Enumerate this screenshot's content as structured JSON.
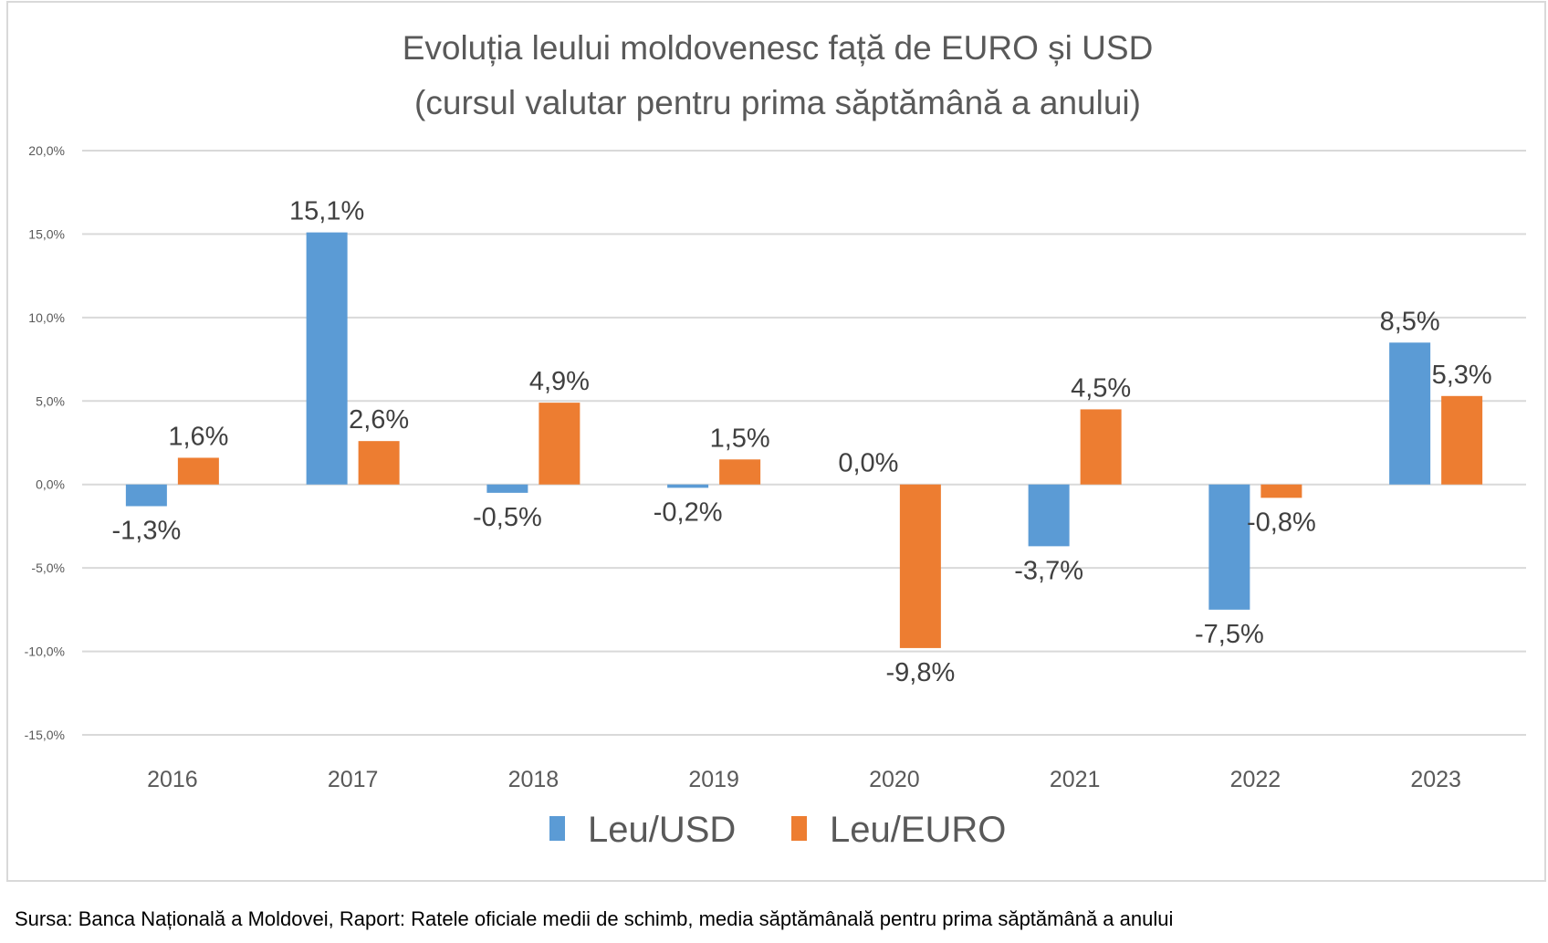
{
  "chart_data": {
    "type": "bar",
    "title": [
      "Evoluția leului moldovenesc față de EURO și USD",
      "(cursul valutar pentru prima săptămână a anului)"
    ],
    "xlabel": "",
    "ylabel": "",
    "categories": [
      "2016",
      "2017",
      "2018",
      "2019",
      "2020",
      "2021",
      "2022",
      "2023"
    ],
    "series": [
      {
        "name": "Leu/USD",
        "color": "#5b9bd5",
        "values": [
          -1.3,
          15.1,
          -0.5,
          -0.2,
          0.0,
          -3.7,
          -7.5,
          8.5
        ],
        "labels": [
          "-1,3%",
          "15,1%",
          "-0,5%",
          "-0,2%",
          "0,0%",
          "-3,7%",
          "-7,5%",
          "8,5%"
        ]
      },
      {
        "name": "Leu/EURO",
        "color": "#ed7d31",
        "values": [
          1.6,
          2.6,
          4.9,
          1.5,
          -9.8,
          4.5,
          -0.8,
          5.3
        ],
        "labels": [
          "1,6%",
          "2,6%",
          "4,9%",
          "1,5%",
          "-9,8%",
          "4,5%",
          "-0,8%",
          "5,3%"
        ]
      }
    ],
    "ylim": [
      -15,
      20
    ],
    "yticks": [
      20,
      15,
      10,
      5,
      0,
      -5,
      -10,
      -15
    ],
    "ytick_labels": [
      "20,0%",
      "15,0%",
      "10,0%",
      "5,0%",
      "0,0%",
      "-5,0%",
      "-10,0%",
      "-15,0%"
    ],
    "grid": true,
    "legend": "bottom"
  },
  "source_note": "Sursa: Banca Națională a Moldovei, Raport: Ratele oficiale medii de schimb, media săptămânală pentru prima săptămână a anului"
}
